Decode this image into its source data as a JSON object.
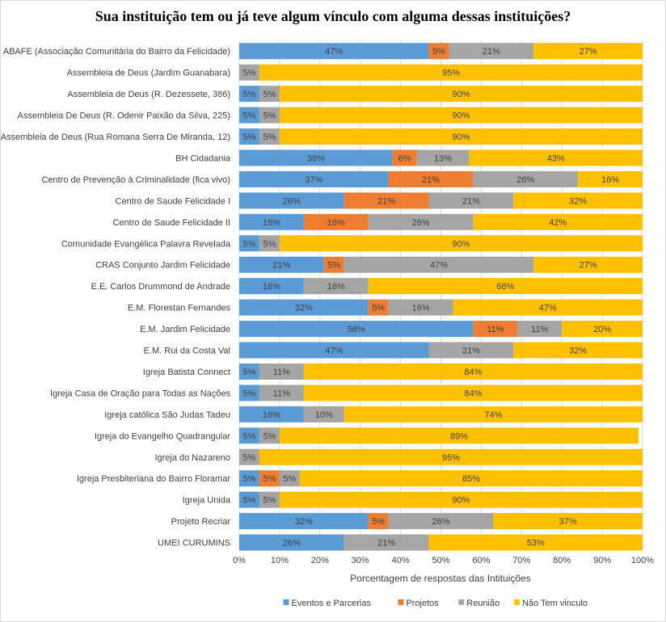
{
  "chart_data": {
    "type": "bar",
    "orientation": "horizontal",
    "stacked": "percent",
    "title": "Sua instituição tem ou já teve algum vínculo com alguma dessas instituições?",
    "xlabel": "Porcentagem de respostas das Intituições",
    "ylabel": "",
    "xlim": [
      0,
      100
    ],
    "x_ticks": [
      "0%",
      "10%",
      "20%",
      "30%",
      "40%",
      "50%",
      "60%",
      "70%",
      "80%",
      "90%",
      "100%"
    ],
    "gridlines": true,
    "legend_position": "bottom",
    "categories": [
      "ABAFE (Associação Comunitária do Bairro da Felicidade)",
      "Assembleia de Deus (Jardim Guanabara)",
      "Assembleia de Deus (R. Dezessete, 386)",
      "Assembleia De Deus (R. Odenir Paixão da Silva, 225)",
      "Assembleia de Deus (Rua Romana Serra De Miranda, 12)",
      "BH Cidadania",
      "Centro de Prevenção à Criminalidade (fica vivo)",
      "Centro de Saude Felicidade I",
      "Centro de Saude Felicidade II",
      "Comunidade Evangélica Palavra Revelada",
      "CRAS Conjunto Jardim Felicidade",
      "E.E. Carlos Drummond de Andrade",
      "E.M. Florestan Fernandes",
      "E.M. Jardim Felicidade",
      "E.M. Rui da Costa Val",
      "Igreja Batista Connect",
      "Igreja Casa de Oração para Todas as Nações",
      "Igreja católica São Judas Tadeu",
      "Igreja do Evangelho Quadrangular",
      "Igreja do Nazareno",
      "Igreja Presbiteriana do Bairro Floramar",
      "Igreja Unida",
      "Projeto Recriar",
      "UMEI CURUMINS"
    ],
    "series": [
      {
        "name": "Eventos e Parcerias",
        "color": "#5B9BD5",
        "values": [
          47,
          0,
          5,
          5,
          5,
          38,
          37,
          26,
          16,
          5,
          21,
          16,
          32,
          58,
          47,
          5,
          5,
          16,
          5,
          0,
          5,
          5,
          32,
          26
        ]
      },
      {
        "name": "Projetos",
        "color": "#ED7D31",
        "values": [
          5,
          0,
          0,
          0,
          0,
          6,
          21,
          21,
          16,
          0,
          5,
          0,
          5,
          11,
          0,
          0,
          0,
          0,
          0,
          0,
          5,
          0,
          5,
          0
        ]
      },
      {
        "name": "Reunião",
        "color": "#A5A5A5",
        "values": [
          21,
          5,
          5,
          5,
          5,
          13,
          26,
          21,
          26,
          5,
          47,
          16,
          16,
          11,
          21,
          11,
          11,
          10,
          5,
          5,
          5,
          5,
          26,
          21
        ]
      },
      {
        "name": "Não Tem vinculo",
        "color": "#FFC000",
        "values": [
          27,
          95,
          90,
          90,
          90,
          43,
          16,
          32,
          42,
          90,
          27,
          68,
          47,
          20,
          32,
          84,
          84,
          74,
          89,
          95,
          85,
          90,
          37,
          53
        ]
      }
    ]
  }
}
